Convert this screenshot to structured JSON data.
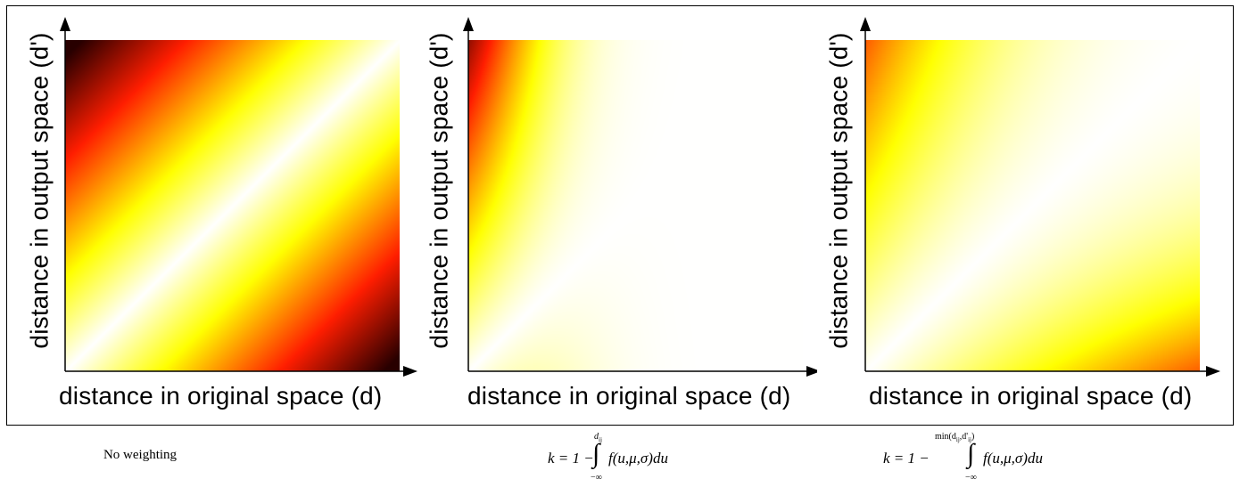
{
  "panels": [
    {
      "ylabel": "distance in output space (d')",
      "xlabel": "distance in original space (d)",
      "caption": "No weighting",
      "map": "diagonal"
    },
    {
      "ylabel": "distance in output space (d')",
      "xlabel": "distance in original space (d)",
      "formula": {
        "lhs": "k = 1 −",
        "upper": "d",
        "upper_sub": "ij",
        "integrand": "f(u,μ,σ)du",
        "lower": "−∞"
      },
      "map": "weighted"
    },
    {
      "ylabel": "distance in output space (d')",
      "xlabel": "distance in original space (d)",
      "formula": {
        "lhs": "k = 1 −",
        "upper": "min(d",
        "upper_sub": "ij",
        "upper_mid": ",d'",
        "upper_sub2": "ij",
        "upper_end": ")",
        "integrand": "f(u,μ,σ)du",
        "lower": "−∞"
      },
      "map": "weighted-min"
    }
  ],
  "colors": {
    "colormap": [
      "#000000",
      "#ff2a00",
      "#ffff00",
      "#ffffff"
    ],
    "axis": "#000000"
  }
}
